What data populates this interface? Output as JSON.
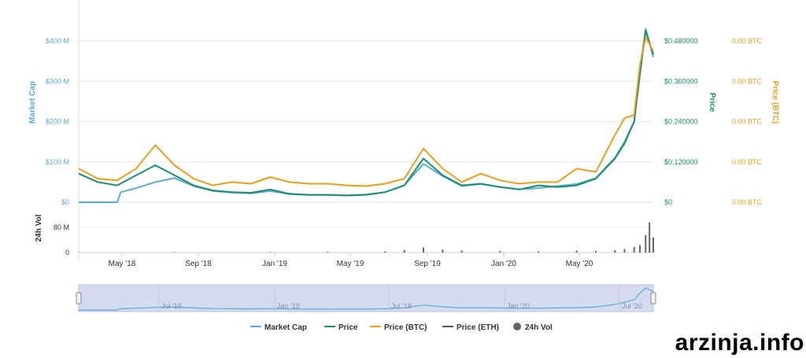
{
  "chart_data": {
    "type": "line",
    "x_tick_labels": [
      "May '18",
      "Sep '18",
      "Jan '19",
      "May '19",
      "Sep '19",
      "Jan '20",
      "May '20"
    ],
    "left_axis": {
      "title": "Market Cap",
      "ticks": [
        "$0",
        "$100 M",
        "$200 M",
        "$300 M",
        "$400 M"
      ],
      "ylim": [
        0,
        400
      ]
    },
    "right_axis_price": {
      "title": "Price",
      "ticks": [
        "$0",
        "$0.120000",
        "$0.240000",
        "$0.360000",
        "$0.480000"
      ],
      "ylim": [
        0,
        0.48
      ]
    },
    "right_axis_btc": {
      "title": "Price (BTC)",
      "ticks": [
        "0.00 BTC",
        "0.00 BTC",
        "0.00 BTC",
        "0.00 BTC",
        "0.00 BTC"
      ]
    },
    "volume_axis": {
      "title": "24h Vol",
      "ticks": [
        "0",
        "80 M"
      ]
    },
    "navigator_labels": [
      "Jul '18",
      "Jan '19",
      "Jul '19",
      "Jan '20",
      "Jul '20"
    ],
    "series": [
      {
        "name": "Market Cap",
        "color": "#5aa9d6",
        "x": [
          0,
          2,
          2.2,
          3,
          4,
          5,
          6,
          7,
          8,
          9,
          10,
          11,
          12,
          13,
          14,
          15,
          16,
          17,
          18,
          19,
          20,
          21,
          22,
          23,
          24,
          25,
          26,
          27,
          28,
          28.5,
          29,
          29.3,
          29.6,
          30
        ],
        "y": [
          0,
          0,
          25,
          35,
          50,
          60,
          40,
          28,
          24,
          22,
          28,
          20,
          18,
          18,
          17,
          19,
          25,
          42,
          95,
          65,
          40,
          45,
          38,
          32,
          35,
          40,
          45,
          60,
          110,
          150,
          200,
          330,
          430,
          360
        ]
      },
      {
        "name": "Price",
        "color": "#1a8f6f",
        "x": [
          0,
          1,
          2,
          3,
          4,
          5,
          6,
          7,
          8,
          9,
          10,
          11,
          12,
          13,
          14,
          15,
          16,
          17,
          18,
          19,
          20,
          21,
          22,
          23,
          24,
          25,
          26,
          27,
          28,
          28.5,
          29,
          29.3,
          29.6,
          30
        ],
        "y": [
          0.085,
          0.06,
          0.05,
          0.08,
          0.11,
          0.08,
          0.05,
          0.035,
          0.03,
          0.028,
          0.038,
          0.025,
          0.022,
          0.022,
          0.02,
          0.022,
          0.03,
          0.05,
          0.13,
          0.08,
          0.05,
          0.055,
          0.045,
          0.038,
          0.05,
          0.045,
          0.05,
          0.07,
          0.13,
          0.175,
          0.24,
          0.38,
          0.51,
          0.44
        ]
      },
      {
        "name": "Price (BTC)",
        "color": "#e6a01e",
        "x": [
          0,
          1,
          2,
          3,
          4,
          5,
          6,
          7,
          8,
          9,
          10,
          11,
          12,
          13,
          14,
          15,
          16,
          17,
          18,
          19,
          20,
          21,
          22,
          23,
          24,
          25,
          26,
          27,
          28,
          28.5,
          29,
          29.3,
          29.6,
          30
        ],
        "y": [
          0.1,
          0.07,
          0.065,
          0.1,
          0.17,
          0.11,
          0.07,
          0.05,
          0.06,
          0.055,
          0.075,
          0.06,
          0.055,
          0.055,
          0.05,
          0.048,
          0.055,
          0.07,
          0.16,
          0.1,
          0.06,
          0.085,
          0.065,
          0.055,
          0.06,
          0.06,
          0.1,
          0.09,
          0.2,
          0.25,
          0.26,
          0.41,
          0.49,
          0.45
        ]
      },
      {
        "name": "Price (ETH)",
        "color": "#555555",
        "x": [],
        "y": []
      },
      {
        "name": "24h Vol",
        "color": "#666666",
        "x": [
          0,
          5,
          10,
          13,
          16,
          17,
          18,
          19,
          20,
          22,
          24,
          26,
          27,
          28,
          28.5,
          29,
          29.3,
          29.6,
          29.8,
          30
        ],
        "y": [
          1,
          2,
          2,
          3,
          5,
          10,
          20,
          12,
          8,
          6,
          5,
          8,
          6,
          10,
          14,
          22,
          30,
          70,
          120,
          60
        ]
      }
    ]
  },
  "legend": [
    {
      "label": "Market Cap",
      "color": "#5aa9d6",
      "kind": "line"
    },
    {
      "label": "Price",
      "color": "#1a8f6f",
      "kind": "line"
    },
    {
      "label": "Price (BTC)",
      "color": "#e6a01e",
      "kind": "line"
    },
    {
      "label": "Price (ETH)",
      "color": "#555555",
      "kind": "line"
    },
    {
      "label": "24h Vol",
      "color": "#666666",
      "kind": "dot"
    }
  ],
  "watermark": "arzinja.info"
}
